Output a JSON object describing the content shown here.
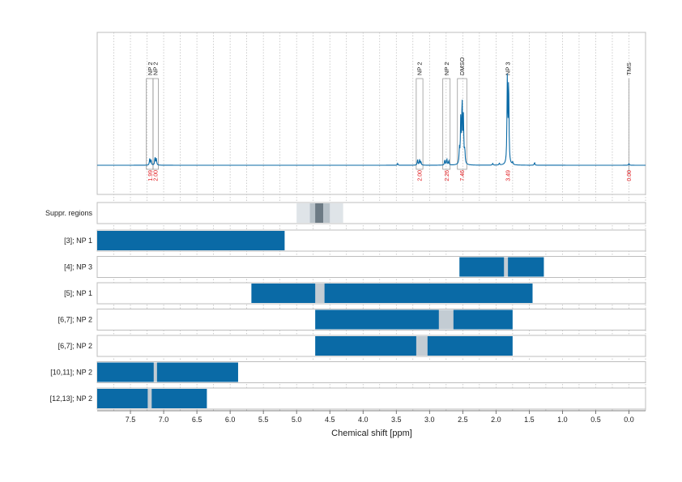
{
  "colors": {
    "spectrum": "#0a6aa6",
    "bar": "#0a6aa6",
    "gap": "#c3ccd3",
    "integral_text": "#e0161b",
    "grid": "#b8b8b8",
    "frame": "#bdbdbd",
    "suppr_light": "#dfe4e8",
    "suppr_mid": "#b8c2c9",
    "suppr_dark": "#6c7a84"
  },
  "chart_data": {
    "type": "line",
    "xlabel": "Chemical shift [ppm]",
    "xlim": [
      8.0,
      -0.25
    ],
    "x_reversed": true,
    "xticks": [
      "7.5",
      "7.0",
      "6.5",
      "6.0",
      "5.5",
      "5.0",
      "4.5",
      "4.0",
      "3.5",
      "3.0",
      "2.5",
      "2.0",
      "1.5",
      "1.0",
      "0.5",
      "0.0"
    ],
    "grid": true,
    "spectrum_peaks": [
      {
        "x": 7.21,
        "y": 0.07
      },
      {
        "x": 7.19,
        "y": 0.06
      },
      {
        "x": 7.13,
        "y": 0.09
      },
      {
        "x": 7.11,
        "y": 0.07
      },
      {
        "x": 3.48,
        "y": 0.02
      },
      {
        "x": 3.18,
        "y": 0.06
      },
      {
        "x": 3.15,
        "y": 0.06
      },
      {
        "x": 3.13,
        "y": 0.04
      },
      {
        "x": 2.77,
        "y": 0.06
      },
      {
        "x": 2.74,
        "y": 0.07
      },
      {
        "x": 2.71,
        "y": 0.05
      },
      {
        "x": 2.55,
        "y": 0.16
      },
      {
        "x": 2.53,
        "y": 0.51
      },
      {
        "x": 2.51,
        "y": 0.71
      },
      {
        "x": 2.49,
        "y": 0.5
      },
      {
        "x": 2.47,
        "y": 0.15
      },
      {
        "x": 2.05,
        "y": 0.02
      },
      {
        "x": 1.95,
        "y": 0.02
      },
      {
        "x": 1.83,
        "y": 0.93
      },
      {
        "x": 1.81,
        "y": 0.96
      },
      {
        "x": 1.75,
        "y": 0.03
      },
      {
        "x": 1.42,
        "y": 0.03
      },
      {
        "x": 0.0,
        "y": 0.02
      }
    ],
    "peak_annotations": [
      {
        "label": "NP 2",
        "x": 7.2,
        "box": [
          7.26,
          7.16
        ],
        "line": false
      },
      {
        "label": "NP 2",
        "x": 7.12,
        "box": [
          7.16,
          7.08
        ],
        "line": false
      },
      {
        "label": "NP 2",
        "x": 3.15,
        "box": [
          3.2,
          3.1
        ],
        "line": false
      },
      {
        "label": "NP 2",
        "x": 2.74,
        "box": [
          2.8,
          2.69
        ],
        "line": false
      },
      {
        "label": "DMSO",
        "x": 2.51,
        "box": [
          2.58,
          2.44
        ],
        "line": false
      },
      {
        "label": "NP 3",
        "x": 1.82,
        "box": null,
        "line": false
      },
      {
        "label": "TMS",
        "x": 0.0,
        "box": null,
        "line": true
      }
    ],
    "integrals": [
      {
        "label": "1.99",
        "x": 7.2
      },
      {
        "label": "2.00",
        "x": 7.12
      },
      {
        "label": "2.00",
        "x": 3.15
      },
      {
        "label": "2.26",
        "x": 2.74
      },
      {
        "label": "7.46",
        "x": 2.51
      },
      {
        "label": "3.49",
        "x": 1.82
      },
      {
        "label": "0.00",
        "x": 0.0
      }
    ],
    "suppr_regions": {
      "label": "Suppr. regions",
      "light": [
        5.0,
        4.3
      ],
      "mid": [
        4.8,
        4.5
      ],
      "dark": [
        4.72,
        4.6
      ]
    },
    "rows": [
      {
        "label": "[3]; NP 1",
        "start": 8.0,
        "end": 5.18,
        "gaps": []
      },
      {
        "label": "[4]; NP 3",
        "start": 2.55,
        "end": 1.28,
        "gaps": [
          [
            1.88,
            1.82
          ]
        ]
      },
      {
        "label": "[5]; NP 1",
        "start": 5.68,
        "end": 1.45,
        "gaps": [
          [
            4.72,
            4.58
          ]
        ]
      },
      {
        "label": "[6,7]; NP 2",
        "start": 4.72,
        "end": 1.75,
        "gaps": [
          [
            2.86,
            2.64
          ]
        ]
      },
      {
        "label": "[6,7]; NP 2",
        "start": 4.72,
        "end": 1.75,
        "gaps": [
          [
            3.2,
            3.03
          ]
        ]
      },
      {
        "label": "[10,11]; NP 2",
        "start": 8.0,
        "end": 5.88,
        "gaps": [
          [
            7.15,
            7.1
          ]
        ]
      },
      {
        "label": "[12,13]; NP 2",
        "start": 8.0,
        "end": 6.35,
        "gaps": [
          [
            7.24,
            7.18
          ]
        ]
      }
    ]
  }
}
